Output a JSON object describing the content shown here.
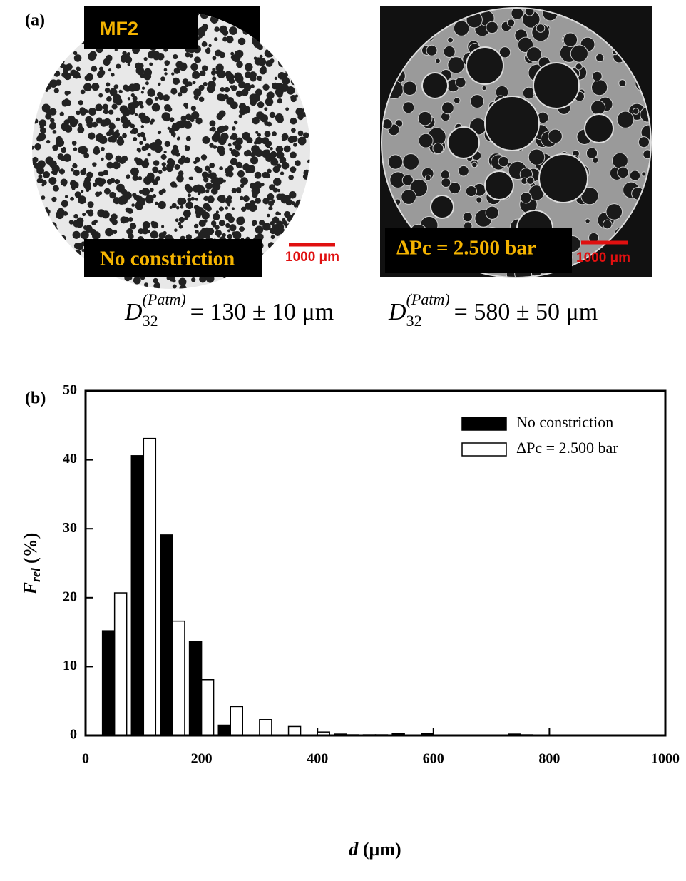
{
  "panel_labels": [
    "(a)",
    "(b)"
  ],
  "images": [
    {
      "top_label": "MF2",
      "bottom_label": "No constriction",
      "scale_bar": "1000 μm"
    },
    {
      "bottom_label": "ΔPc = 2.500 bar",
      "scale_bar": "1000 μm"
    }
  ],
  "equations": [
    {
      "symbol": "D",
      "subscript": "32",
      "superscript": "(Patm)",
      "rhs": "= 130 ± 10 μm"
    },
    {
      "symbol": "D",
      "subscript": "32",
      "superscript": "(Patm)",
      "rhs": "= 580 ± 50 μm"
    }
  ],
  "chart_data": {
    "type": "bar",
    "x_label": {
      "symbol": "d",
      "unit": "(μm)"
    },
    "y_label": {
      "symbol": "F",
      "subscript": "rel",
      "unit": "(%)"
    },
    "x": [
      50,
      100,
      150,
      200,
      250,
      300,
      350,
      400,
      450,
      500,
      550,
      600,
      650,
      700,
      750
    ],
    "series": [
      {
        "name": "No constriction",
        "color": "#000000",
        "values": [
          15.2,
          40.6,
          29.1,
          13.6,
          1.5,
          0,
          0,
          0,
          0.2,
          0.1,
          0.3,
          0.3,
          0,
          0,
          0.2
        ]
      },
      {
        "name": "ΔPc = 2.500 bar",
        "color": "#ffffff",
        "values": [
          20.7,
          43.1,
          16.6,
          8.1,
          4.2,
          2.3,
          1.3,
          0.5,
          0.1,
          0.1,
          0,
          0,
          0,
          0,
          0.1
        ]
      }
    ],
    "xlim": [
      0,
      1000
    ],
    "xticks": [
      0,
      200,
      400,
      600,
      800,
      1000
    ],
    "ylim": [
      0,
      50
    ],
    "yticks": [
      0,
      10,
      20,
      30,
      40,
      50
    ],
    "legend": "upper right"
  }
}
